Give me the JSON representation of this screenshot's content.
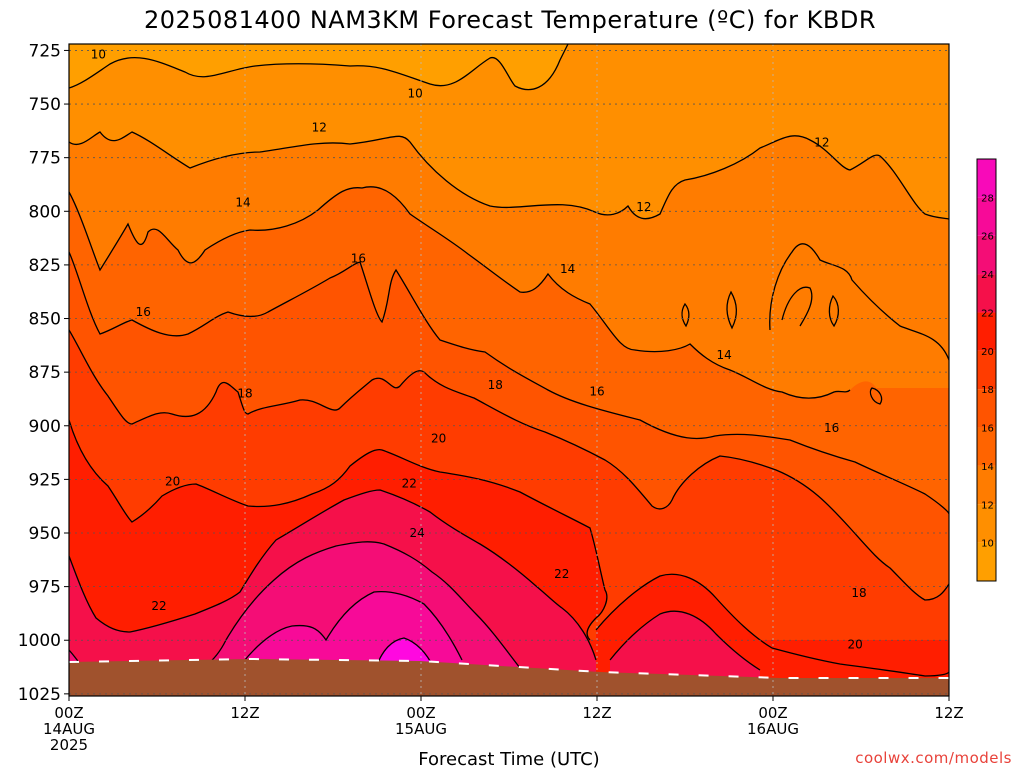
{
  "title": "2025081400 NAM3KM Forecast Temperature (ºC) for KBDR",
  "credit": "coolwx.com/models",
  "colors": {
    "ground": "#a0522d",
    "contour": "#000000",
    "grid": "#888888",
    "credit": "#e8423a"
  },
  "chart_data": {
    "type": "heatmap",
    "title": "2025081400 NAM3KM Forecast Temperature (ºC) for KBDR",
    "xlabel": "Forecast Time (UTC)",
    "ylabel": "",
    "x_range_hours": [
      0,
      36
    ],
    "y_range_hpa": [
      722,
      1026
    ],
    "y_axis_inverted": true,
    "grid": true,
    "y_ticks": [
      725,
      750,
      775,
      800,
      825,
      850,
      875,
      900,
      925,
      950,
      975,
      1000,
      1025
    ],
    "x_ticks": [
      {
        "hour": 0,
        "lines": [
          "00Z",
          "14AUG",
          "2025"
        ]
      },
      {
        "hour": 9,
        "lines": [
          "12Z"
        ]
      },
      {
        "hour": 18,
        "lines": [
          "00Z",
          "15AUG"
        ]
      },
      {
        "hour": 27,
        "lines": [
          "12Z"
        ]
      },
      {
        "hour": 36,
        "lines": [
          "00Z",
          "16AUG"
        ]
      },
      {
        "hour": 45,
        "lines": [
          "12Z"
        ]
      }
    ],
    "colorbar": {
      "placement": "right",
      "levels": [
        8,
        10,
        12,
        14,
        16,
        18,
        20,
        22,
        24,
        26,
        28,
        30
      ],
      "colors": [
        "#ff9f00",
        "#ff8f00",
        "#ff7c00",
        "#ff6400",
        "#ff5400",
        "#ff3c00",
        "#ff1e00",
        "#f5104a",
        "#f40d76",
        "#f70a98",
        "#f80ab9",
        "#ff08e0"
      ],
      "tick_labels": [
        "10",
        "12",
        "14",
        "16",
        "18",
        "20",
        "22",
        "24",
        "26",
        "28"
      ]
    },
    "contour_levels": [
      10,
      12,
      14,
      16,
      18,
      20,
      22,
      24
    ],
    "contour_labels": [
      {
        "text": "10",
        "hour": 1.5,
        "hpa": 727
      },
      {
        "text": "10",
        "hour": 17.7,
        "hpa": 745
      },
      {
        "text": "12",
        "hour": 12.8,
        "hpa": 761
      },
      {
        "text": "12",
        "hour": 38.5,
        "hpa": 768
      },
      {
        "text": "12",
        "hour": 29.4,
        "hpa": 798
      },
      {
        "text": "14",
        "hour": 8.9,
        "hpa": 796
      },
      {
        "text": "14",
        "hour": 25.5,
        "hpa": 827
      },
      {
        "text": "14",
        "hour": 33.5,
        "hpa": 867
      },
      {
        "text": "16",
        "hour": 14.8,
        "hpa": 822
      },
      {
        "text": "16",
        "hour": 3.8,
        "hpa": 847
      },
      {
        "text": "16",
        "hour": 27.0,
        "hpa": 884
      },
      {
        "text": "16",
        "hour": 39.0,
        "hpa": 901
      },
      {
        "text": "18",
        "hour": 9.0,
        "hpa": 885
      },
      {
        "text": "18",
        "hour": 21.8,
        "hpa": 881
      },
      {
        "text": "18",
        "hour": 40.4,
        "hpa": 978
      },
      {
        "text": "20",
        "hour": 18.9,
        "hpa": 906
      },
      {
        "text": "20",
        "hour": 5.3,
        "hpa": 926
      },
      {
        "text": "20",
        "hour": 40.2,
        "hpa": 1002
      },
      {
        "text": "22",
        "hour": 17.4,
        "hpa": 927
      },
      {
        "text": "22",
        "hour": 25.2,
        "hpa": 969
      },
      {
        "text": "22",
        "hour": 4.6,
        "hpa": 984
      },
      {
        "text": "24",
        "hour": 17.8,
        "hpa": 950
      }
    ],
    "temperature_profile": {
      "pressures_hpa": [
        725,
        750,
        775,
        800,
        825,
        850,
        875,
        900,
        925,
        950,
        975,
        1000,
        1025
      ],
      "hours": [
        0,
        3,
        6,
        9,
        12,
        15,
        18,
        21,
        24,
        27,
        30,
        33,
        36,
        39,
        42,
        45
      ],
      "values_c": [
        [
          10.0,
          9.6,
          9.3,
          9.4,
          9.7,
          9.8,
          10.0,
          9.8,
          10.1,
          10.2,
          10.3,
          10.4,
          10.5,
          10.4,
          10.5,
          10.6
        ],
        [
          11.9,
          11.4,
          11.3,
          11.3,
          11.3,
          11.4,
          11.6,
          11.5,
          11.3,
          11.2,
          11.2,
          11.3,
          11.5,
          11.3,
          11.7,
          11.7
        ],
        [
          13.0,
          12.8,
          13.1,
          12.9,
          13.1,
          13.1,
          13.0,
          12.8,
          12.3,
          12.0,
          11.8,
          12.0,
          12.4,
          12.3,
          12.7,
          12.8
        ],
        [
          14.7,
          14.2,
          14.6,
          14.4,
          14.6,
          15.3,
          15.1,
          14.7,
          13.9,
          13.5,
          13.3,
          13.2,
          13.1,
          12.9,
          13.4,
          14.2
        ],
        [
          16.3,
          16.0,
          16.1,
          15.8,
          16.0,
          16.8,
          16.7,
          15.8,
          15.0,
          14.6,
          14.2,
          13.8,
          14.3,
          14.4,
          14.7,
          15.4
        ],
        [
          17.8,
          17.2,
          16.3,
          16.1,
          16.4,
          17.2,
          17.9,
          17.1,
          16.0,
          15.2,
          14.7,
          14.3,
          14.8,
          15.0,
          15.0,
          15.7
        ],
        [
          18.8,
          18.3,
          18.0,
          17.9,
          18.0,
          18.2,
          18.8,
          18.2,
          17.4,
          16.9,
          16.2,
          15.6,
          15.4,
          15.6,
          15.4,
          16.0
        ],
        [
          19.7,
          19.4,
          19.4,
          19.0,
          19.3,
          19.5,
          20.2,
          19.6,
          18.9,
          18.0,
          17.5,
          17.1,
          16.8,
          16.3,
          16.1,
          16.3
        ],
        [
          20.8,
          20.2,
          19.9,
          20.0,
          20.6,
          21.4,
          22.1,
          21.3,
          20.2,
          19.2,
          18.8,
          18.8,
          18.6,
          17.7,
          17.2,
          17.2
        ],
        [
          22.0,
          21.1,
          20.8,
          21.2,
          22.6,
          23.5,
          24.1,
          23.1,
          21.2,
          19.8,
          20.1,
          20.6,
          20.0,
          18.7,
          18.0,
          17.8
        ],
        [
          23.5,
          22.1,
          21.9,
          22.6,
          24.1,
          25.0,
          25.8,
          24.3,
          22.5,
          20.3,
          21.8,
          22.7,
          21.4,
          19.9,
          18.7,
          18.6
        ],
        [
          25.2,
          23.3,
          23.1,
          24.0,
          25.6,
          26.6,
          27.9,
          25.4,
          23.0,
          20.7,
          23.0,
          25.3,
          22.8,
          20.6,
          19.2,
          18.7
        ],
        [
          26.2,
          25.0,
          24.8,
          25.4,
          26.7,
          28.1,
          29.3,
          27.1,
          24.6,
          21.2,
          24.4,
          26.8,
          24.0,
          21.7,
          19.8,
          18.9
        ]
      ]
    }
  }
}
